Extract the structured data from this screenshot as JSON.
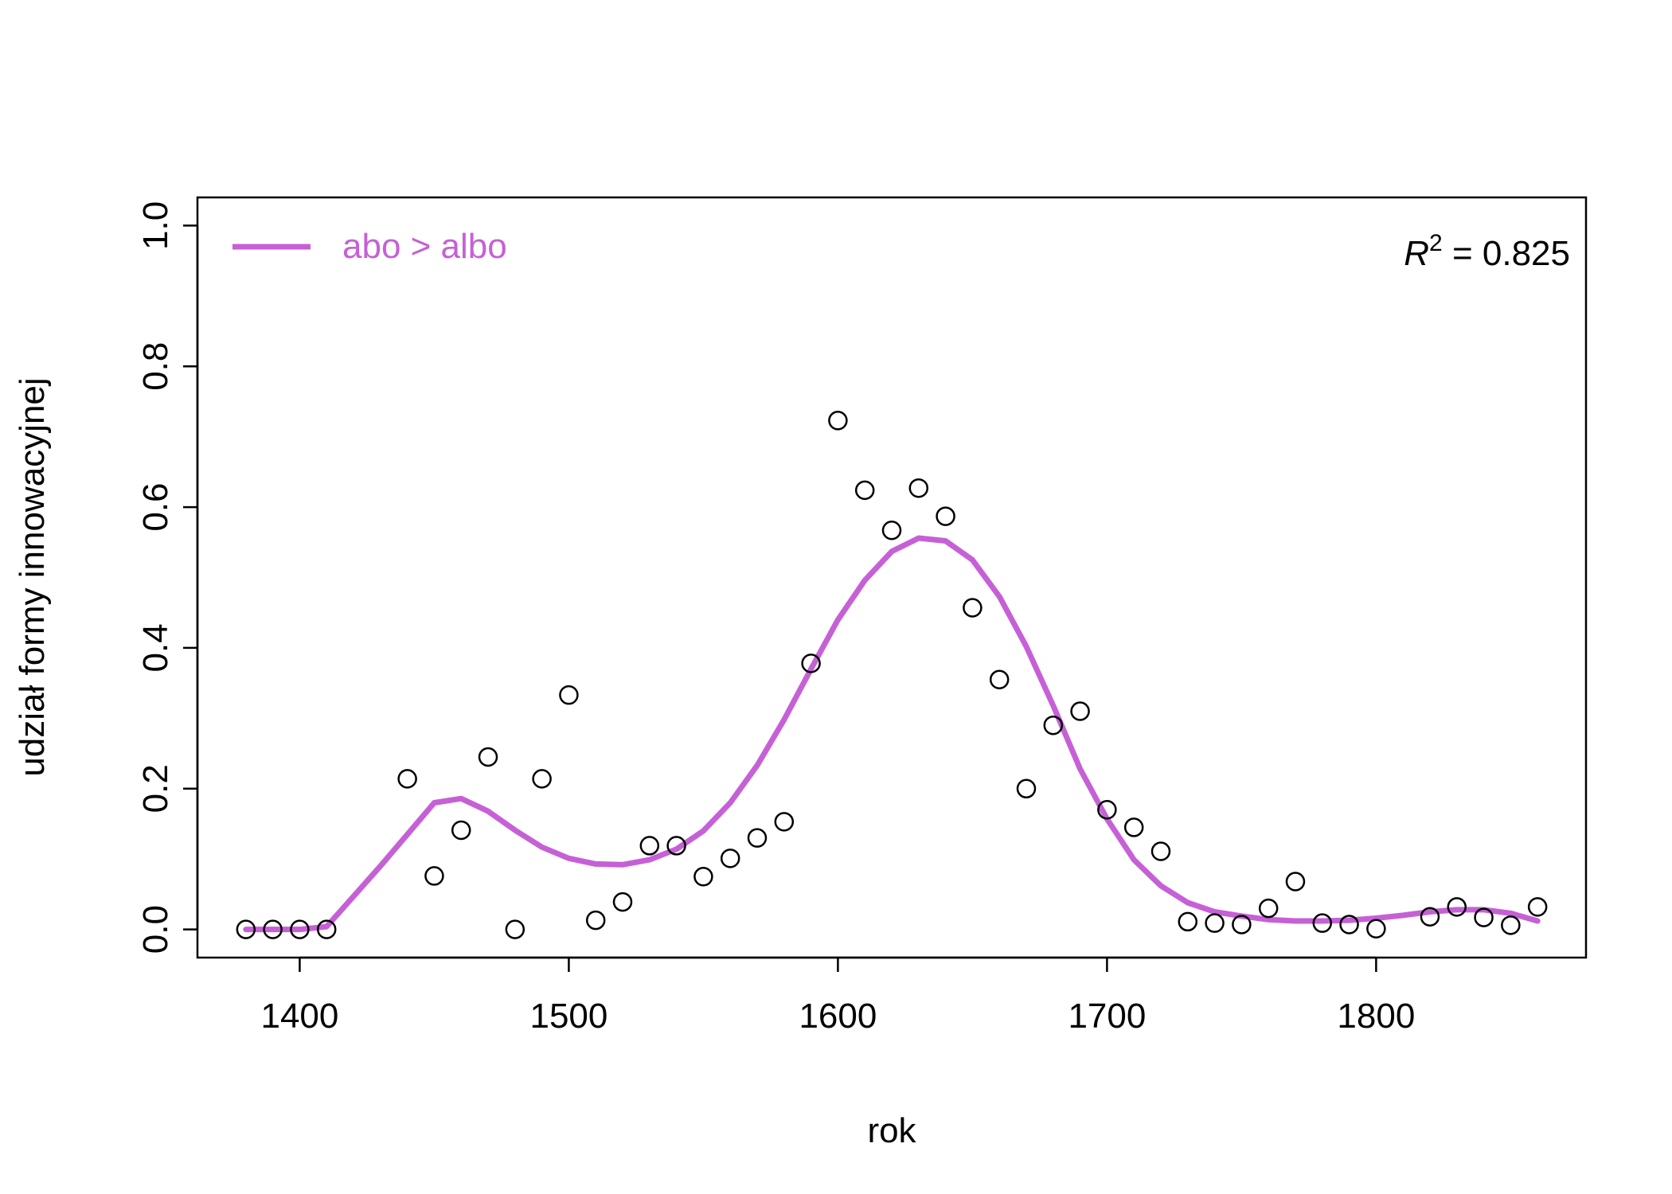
{
  "chart_data": {
    "type": "scatter",
    "title": "",
    "xlabel": "rok",
    "ylabel": "udział formy innowacyjnej",
    "xlim": [
      1362,
      1878
    ],
    "ylim": [
      -0.04,
      1.04
    ],
    "x_ticks": [
      "1400",
      "1500",
      "1600",
      "1700",
      "1800"
    ],
    "y_ticks": [
      "0.0",
      "0.2",
      "0.4",
      "0.6",
      "0.8",
      "1.0"
    ],
    "grid": false,
    "legend": {
      "position": "top-left",
      "entries": [
        {
          "label": "abo > albo",
          "color": "#c660d6"
        }
      ]
    },
    "annotation": {
      "r_symbol": "R",
      "superscript": "2",
      "text": " = 0.825",
      "position": "top-right"
    },
    "series": [
      {
        "type": "scatter",
        "marker": "open-circle",
        "color": "#000000",
        "x": [
          1380,
          1390,
          1400,
          1410,
          1440,
          1450,
          1460,
          1470,
          1480,
          1490,
          1500,
          1510,
          1520,
          1530,
          1540,
          1550,
          1560,
          1570,
          1580,
          1590,
          1600,
          1610,
          1620,
          1630,
          1640,
          1650,
          1660,
          1670,
          1680,
          1690,
          1700,
          1710,
          1720,
          1730,
          1740,
          1750,
          1760,
          1770,
          1780,
          1790,
          1800,
          1820,
          1830,
          1840,
          1850,
          1860
        ],
        "y": [
          0.0,
          0.0,
          0.0,
          0.0,
          0.214,
          0.076,
          0.141,
          0.245,
          0.0,
          0.214,
          0.333,
          0.013,
          0.039,
          0.119,
          0.119,
          0.075,
          0.101,
          0.13,
          0.153,
          0.378,
          0.723,
          0.624,
          0.567,
          0.627,
          0.587,
          0.457,
          0.355,
          0.2,
          0.29,
          0.31,
          0.17,
          0.145,
          0.111,
          0.011,
          0.009,
          0.007,
          0.03,
          0.068,
          0.009,
          0.007,
          0.001,
          0.018,
          0.032,
          0.017,
          0.006,
          0.032
        ]
      },
      {
        "name": "abo > albo",
        "type": "line",
        "color": "#c660d6",
        "x": [
          1380,
          1390,
          1400,
          1410,
          1420,
          1430,
          1440,
          1450,
          1460,
          1470,
          1480,
          1490,
          1500,
          1510,
          1520,
          1530,
          1540,
          1550,
          1560,
          1570,
          1580,
          1590,
          1600,
          1610,
          1620,
          1630,
          1640,
          1650,
          1660,
          1670,
          1680,
          1690,
          1700,
          1710,
          1720,
          1730,
          1740,
          1750,
          1760,
          1770,
          1780,
          1790,
          1800,
          1810,
          1820,
          1830,
          1840,
          1850,
          1860
        ],
        "y": [
          0.0,
          0.0,
          0.0,
          0.004,
          0.047,
          0.09,
          0.135,
          0.18,
          0.186,
          0.168,
          0.141,
          0.117,
          0.101,
          0.093,
          0.092,
          0.099,
          0.114,
          0.14,
          0.18,
          0.233,
          0.298,
          0.37,
          0.44,
          0.496,
          0.537,
          0.556,
          0.552,
          0.525,
          0.473,
          0.402,
          0.318,
          0.228,
          0.157,
          0.099,
          0.062,
          0.038,
          0.025,
          0.019,
          0.014,
          0.012,
          0.012,
          0.013,
          0.016,
          0.02,
          0.025,
          0.028,
          0.028,
          0.023,
          0.012
        ]
      }
    ]
  }
}
